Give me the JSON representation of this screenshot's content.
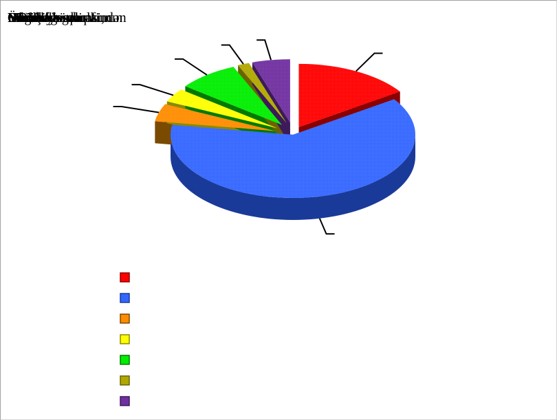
{
  "chart_data": {
    "type": "pie",
    "style": "3d-exploded",
    "overlapping_title_lines": [
      "Doğru",
      "Yanlış",
      "Bilmirəm",
      "Müəllif hüquqlarının",
      "Fikrim yoxdur",
      "Hamısı",
      "Nazirliklər tərəfindən",
      "Mənə elə gəlir ki,",
      "Cavab yoxdur",
      "ÖDV ləğv olunsun"
    ],
    "slices": [
      {
        "value": 15.5,
        "color": "#ff0000",
        "side": "#8b0000"
      },
      {
        "value": 62.0,
        "color": "#3366ff",
        "side": "#1a3a99"
      },
      {
        "value": 4.5,
        "color": "#ff8c00",
        "side": "#7a4a00"
      },
      {
        "value": 3.5,
        "color": "#ffff00",
        "side": "#8a8a00"
      },
      {
        "value": 8.0,
        "color": "#00ee00",
        "side": "#007a00"
      },
      {
        "value": 1.5,
        "color": "#b0a800",
        "side": "#6a6400"
      },
      {
        "value": 5.0,
        "color": "#7030a0",
        "side": "#3d1a5a"
      }
    ],
    "legend": {
      "placement": "bottom-left",
      "entries": [
        "",
        "",
        "",
        "",
        "",
        "",
        ""
      ]
    },
    "data_labels": [
      "",
      "",
      "",
      "",
      "",
      "",
      ""
    ]
  }
}
